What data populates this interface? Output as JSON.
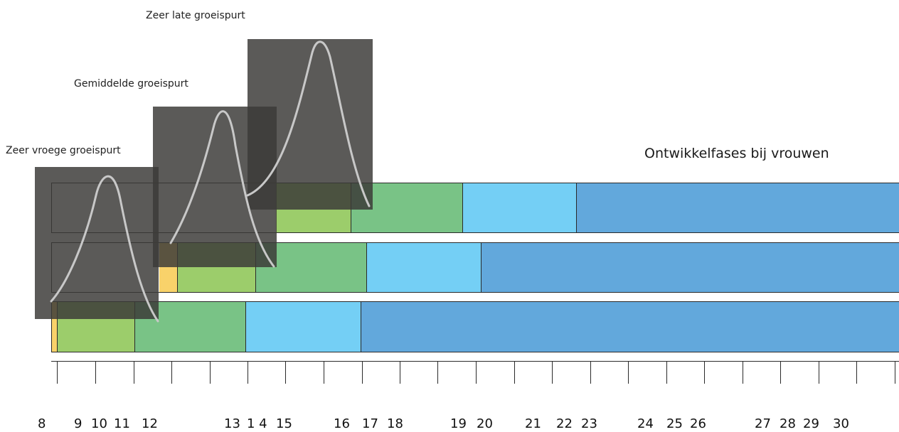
{
  "title": "Ontwikkelfases bij vrouwen",
  "curve_labels": {
    "very_late": "Zeer late groeispurt",
    "average": "Gemiddelde groeispurt",
    "very_early": "Zeer vroege groeispurt"
  },
  "colors": {
    "yellow": "#f9d26a",
    "light_green": "#9ccd6b",
    "mid_green": "#79c386",
    "light_blue": "#74cff5",
    "blue": "#62a8dc",
    "overlay": "#3c3a38",
    "curve": "#c8c8c8"
  },
  "age_labels": [
    "8",
    "9",
    "10",
    "11",
    "12",
    "13",
    "1 4",
    "15",
    "16",
    "17",
    "18",
    "19",
    "20",
    "21",
    "22",
    "23",
    "24",
    "25",
    "26",
    "27",
    "28",
    "29",
    "30"
  ],
  "rows": [
    {
      "name": "zeer late groeispurt",
      "segments": [
        {
          "color": "light_green",
          "start": "15",
          "end": "16"
        },
        {
          "color": "mid_green",
          "start": "16",
          "end": "19"
        },
        {
          "color": "light_blue",
          "start": "19",
          "end": "22"
        },
        {
          "color": "blue",
          "start": "22",
          "end": "30"
        }
      ]
    },
    {
      "name": "gemiddelde groeispurt",
      "segments": [
        {
          "color": "yellow",
          "start": "12",
          "end": "13"
        },
        {
          "color": "light_green",
          "start": "13",
          "end": "1 4"
        },
        {
          "color": "mid_green",
          "start": "1 4",
          "end": "17"
        },
        {
          "color": "light_blue",
          "start": "17",
          "end": "20"
        },
        {
          "color": "blue",
          "start": "20",
          "end": "30"
        }
      ]
    },
    {
      "name": "zeer vroege groeispurt",
      "segments": [
        {
          "color": "yellow",
          "start": "8",
          "end": "9"
        },
        {
          "color": "light_green",
          "start": "9",
          "end": "11"
        },
        {
          "color": "mid_green",
          "start": "11",
          "end": "1 4"
        },
        {
          "color": "light_blue",
          "start": "1 4",
          "end": "17"
        },
        {
          "color": "blue",
          "start": "17",
          "end": "30"
        }
      ]
    }
  ]
}
